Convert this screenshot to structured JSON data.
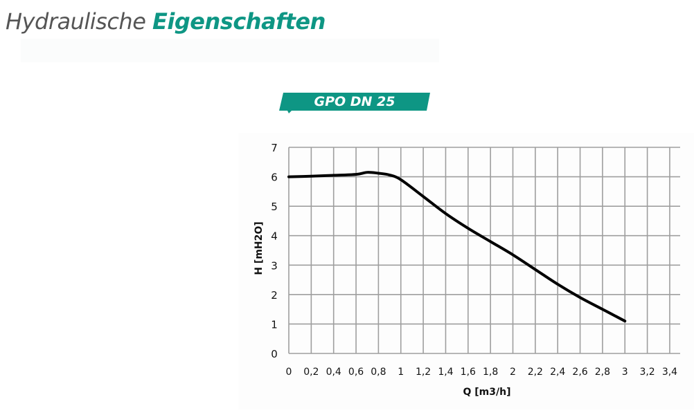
{
  "header": {
    "title_regular": "Hydraulische ",
    "title_accent": "Eigenschaften",
    "accent_color": "#0e9684"
  },
  "badge": {
    "label": "GPO DN 25",
    "color": "#0e9684"
  },
  "chart_data": {
    "type": "line",
    "title": "GPO DN 25",
    "xlabel": "Q [m3/h]",
    "ylabel": "H [mH2O]",
    "xlim": [
      0,
      3.5
    ],
    "ylim": [
      0,
      7
    ],
    "grid": true,
    "legend": "none",
    "x_ticks": [
      "0",
      "0,2",
      "0,4",
      "0,6",
      "0,8",
      "1",
      "1,2",
      "1,4",
      "1,6",
      "1,8",
      "2",
      "2,2",
      "2,4",
      "2,6",
      "2,8",
      "3",
      "3,2",
      "3,4"
    ],
    "y_ticks": [
      "0",
      "1",
      "2",
      "3",
      "4",
      "5",
      "6",
      "7"
    ],
    "series": [
      {
        "name": "GPO DN 25",
        "color": "#000000",
        "x": [
          0,
          0.2,
          0.4,
          0.6,
          0.7,
          0.8,
          0.9,
          1.0,
          1.2,
          1.4,
          1.6,
          1.8,
          2.0,
          2.2,
          2.4,
          2.6,
          2.8,
          3.0
        ],
        "y": [
          6.0,
          6.02,
          6.05,
          6.08,
          6.15,
          6.12,
          6.06,
          5.9,
          5.33,
          4.75,
          4.25,
          3.8,
          3.35,
          2.85,
          2.35,
          1.9,
          1.5,
          1.1
        ]
      }
    ]
  }
}
